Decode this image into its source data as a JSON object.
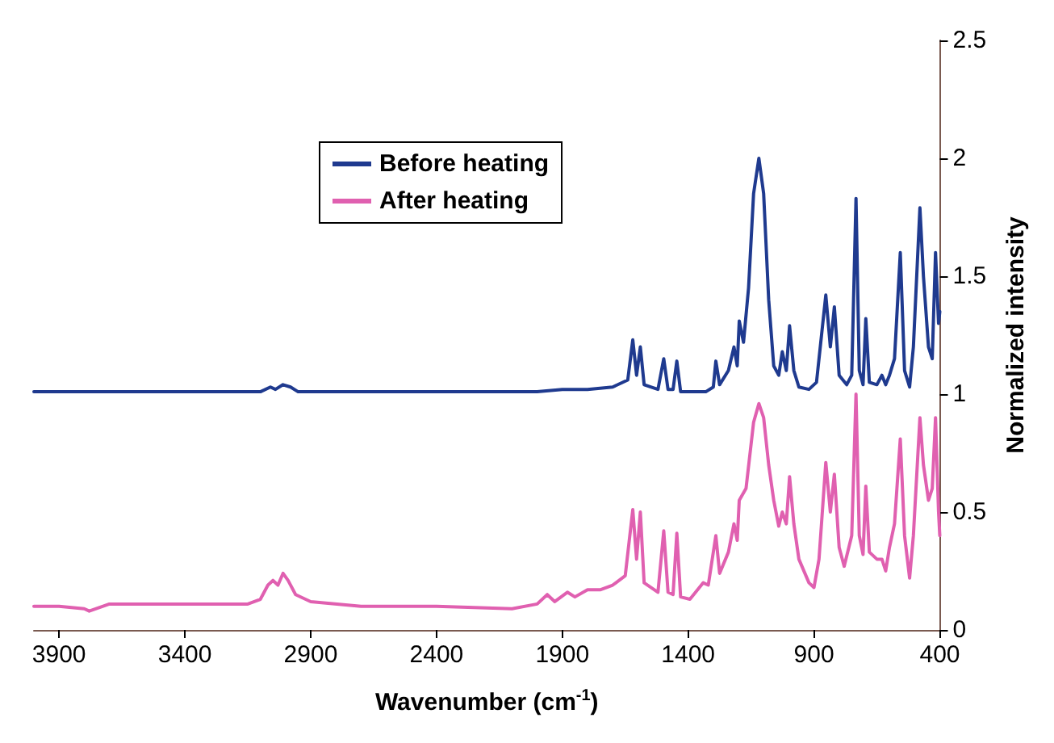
{
  "chart_data": {
    "type": "line",
    "xlabel": "Wavenumber (cm$^{-1}$)",
    "ylabel": "Normalized intensity",
    "xlim": [
      4000,
      400
    ],
    "xticks": [
      3900,
      3400,
      2900,
      2400,
      1900,
      1400,
      900,
      400
    ],
    "ylim": [
      0,
      2.5
    ],
    "yticks": [
      0,
      0.5,
      1,
      1.5,
      2,
      2.5
    ],
    "grid": false,
    "legend": "top left",
    "marker": "none",
    "line_style": "solid",
    "x": [
      4000,
      3500,
      3100,
      3060,
      3040,
      3010,
      2980,
      2950,
      2500,
      2000,
      1900,
      1800,
      1700,
      1640,
      1620,
      1605,
      1590,
      1575,
      1520,
      1497,
      1480,
      1460,
      1445,
      1430,
      1330,
      1300,
      1290,
      1275,
      1240,
      1218,
      1205,
      1197,
      1180,
      1160,
      1140,
      1119,
      1100,
      1080,
      1060,
      1040,
      1026,
      1010,
      997,
      980,
      960,
      920,
      890,
      870,
      853,
      835,
      819,
      800,
      770,
      750,
      733,
      720,
      705,
      694,
      680,
      650,
      630,
      615,
      600,
      580,
      557,
      540,
      520,
      505,
      479,
      465,
      445,
      430,
      417,
      405,
      400
    ],
    "series": [
      {
        "name": "Before heating",
        "color": "#1f3a8f",
        "values": [
          1.01,
          1.01,
          1.01,
          1.03,
          1.02,
          1.04,
          1.03,
          1.01,
          1.01,
          1.01,
          1.02,
          1.02,
          1.03,
          1.06,
          1.23,
          1.08,
          1.2,
          1.04,
          1.02,
          1.15,
          1.02,
          1.02,
          1.14,
          1.01,
          1.01,
          1.03,
          1.14,
          1.04,
          1.1,
          1.2,
          1.12,
          1.31,
          1.22,
          1.45,
          1.85,
          2.0,
          1.85,
          1.4,
          1.12,
          1.08,
          1.18,
          1.1,
          1.29,
          1.1,
          1.03,
          1.02,
          1.05,
          1.25,
          1.42,
          1.2,
          1.37,
          1.08,
          1.04,
          1.08,
          1.83,
          1.1,
          1.04,
          1.32,
          1.05,
          1.04,
          1.08,
          1.04,
          1.08,
          1.15,
          1.6,
          1.1,
          1.03,
          1.2,
          1.79,
          1.5,
          1.2,
          1.15,
          1.6,
          1.3,
          1.35
        ]
      },
      {
        "name": "After heating",
        "color": "#e060b0",
        "x": [
          4000,
          3900,
          3800,
          3780,
          3700,
          3500,
          3150,
          3100,
          3070,
          3050,
          3030,
          3010,
          2990,
          2960,
          2900,
          2700,
          2400,
          2100,
          2000,
          1960,
          1930,
          1880,
          1850,
          1800,
          1750,
          1700,
          1650,
          1620,
          1605,
          1590,
          1575,
          1520,
          1497,
          1480,
          1460,
          1445,
          1430,
          1393,
          1340,
          1320,
          1290,
          1275,
          1240,
          1218,
          1205,
          1197,
          1170,
          1140,
          1119,
          1100,
          1080,
          1060,
          1040,
          1026,
          1010,
          997,
          980,
          960,
          920,
          900,
          880,
          853,
          835,
          819,
          800,
          780,
          750,
          733,
          720,
          705,
          694,
          680,
          650,
          630,
          615,
          600,
          580,
          557,
          540,
          520,
          505,
          479,
          465,
          445,
          430,
          417,
          405,
          400
        ],
        "values": [
          0.1,
          0.1,
          0.09,
          0.08,
          0.11,
          0.11,
          0.11,
          0.13,
          0.19,
          0.21,
          0.19,
          0.24,
          0.21,
          0.15,
          0.12,
          0.1,
          0.1,
          0.09,
          0.11,
          0.15,
          0.12,
          0.16,
          0.14,
          0.17,
          0.17,
          0.19,
          0.23,
          0.51,
          0.3,
          0.5,
          0.2,
          0.16,
          0.42,
          0.16,
          0.15,
          0.41,
          0.14,
          0.13,
          0.2,
          0.19,
          0.4,
          0.24,
          0.33,
          0.45,
          0.38,
          0.55,
          0.6,
          0.88,
          0.96,
          0.9,
          0.7,
          0.55,
          0.44,
          0.5,
          0.45,
          0.65,
          0.45,
          0.3,
          0.2,
          0.18,
          0.3,
          0.71,
          0.5,
          0.66,
          0.35,
          0.27,
          0.4,
          1.0,
          0.4,
          0.32,
          0.61,
          0.33,
          0.3,
          0.3,
          0.25,
          0.35,
          0.45,
          0.81,
          0.4,
          0.22,
          0.4,
          0.9,
          0.7,
          0.55,
          0.6,
          0.9,
          0.5,
          0.4
        ]
      }
    ]
  }
}
